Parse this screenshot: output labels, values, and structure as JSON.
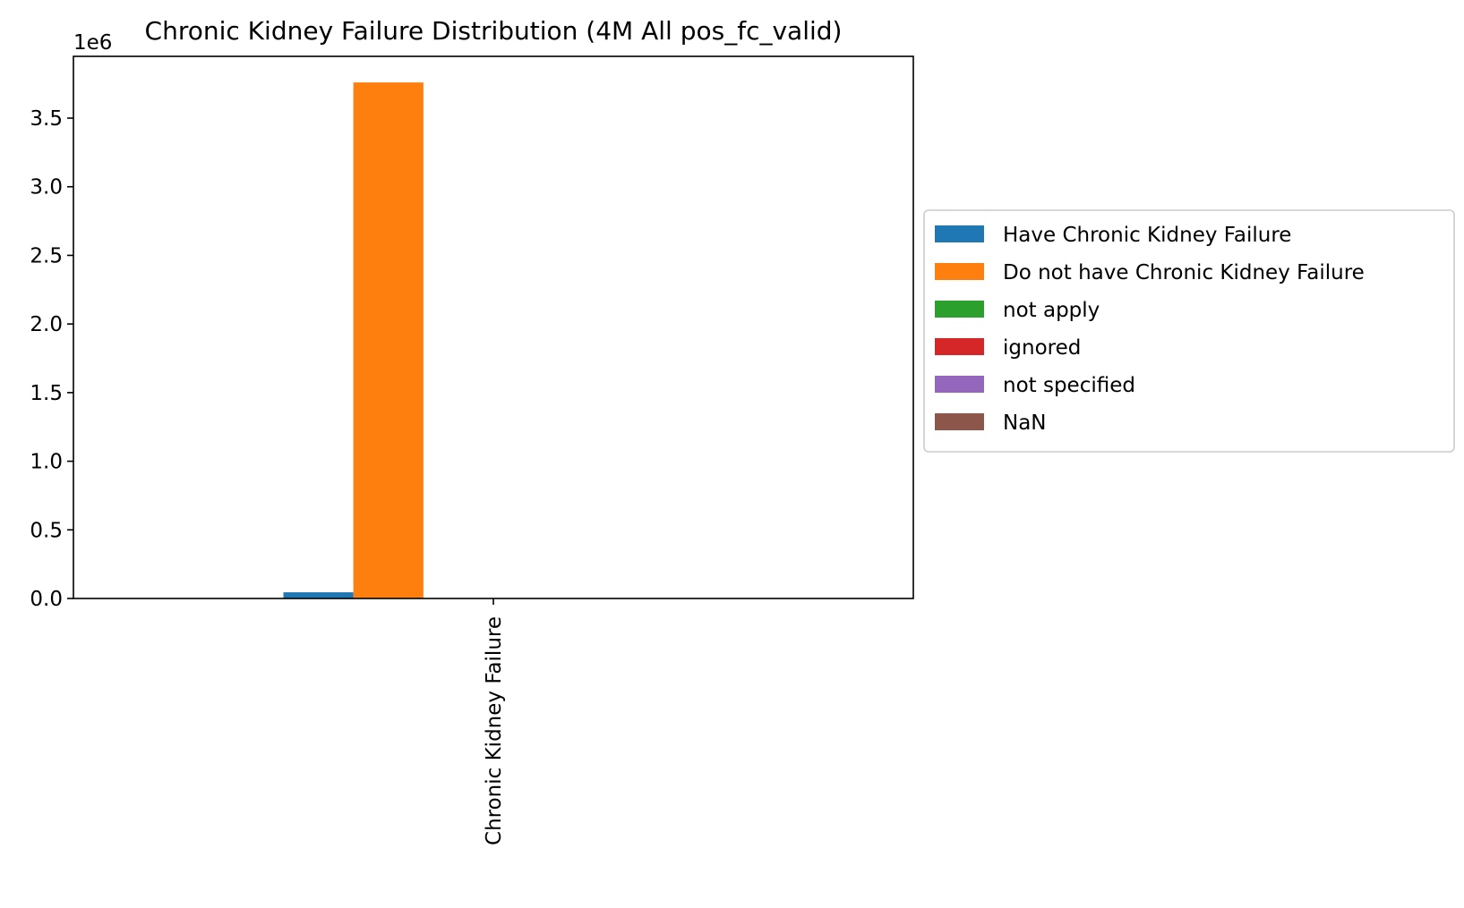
{
  "chart_data": {
    "type": "bar",
    "title": "Chronic Kidney Failure Distribution (4M All pos_fc_valid)",
    "xlabel": "",
    "ylabel": "",
    "y_offset_label": "1e6",
    "categories": [
      "Chronic Kidney Failure"
    ],
    "series": [
      {
        "name": "Have Chronic Kidney Failure",
        "color": "#1f77b4",
        "values": [
          0.045
        ]
      },
      {
        "name": "Do not have Chronic Kidney Failure",
        "color": "#ff7f0e",
        "values": [
          3.76
        ]
      },
      {
        "name": "not apply",
        "color": "#2ca02c",
        "values": [
          0
        ]
      },
      {
        "name": "ignored",
        "color": "#d62728",
        "values": [
          0
        ]
      },
      {
        "name": "not specified",
        "color": "#9467bd",
        "values": [
          0
        ]
      },
      {
        "name": "NaN",
        "color": "#8c564b",
        "values": [
          0
        ]
      }
    ],
    "ylim": [
      0,
      3.95
    ],
    "yticks": [
      "0.0",
      "0.5",
      "1.0",
      "1.5",
      "2.0",
      "2.5",
      "3.0",
      "3.5"
    ],
    "grid": false,
    "legend_position": "right"
  }
}
